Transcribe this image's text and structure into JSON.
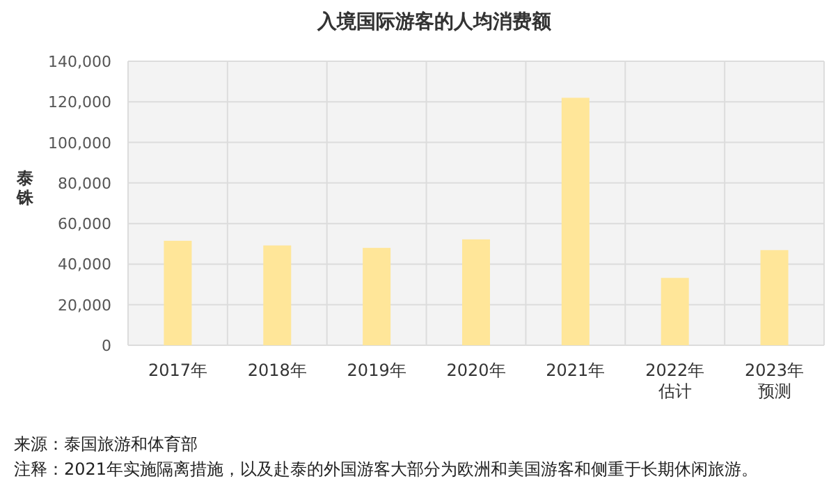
{
  "chart_data": {
    "type": "bar",
    "title": "入境国际游客的人均消费额",
    "ylabel": "泰铢",
    "categories": [
      "2017年",
      "2018年",
      "2019年",
      "2020年",
      "2021年",
      "2022年估计",
      "2023年预测"
    ],
    "values": [
      51500,
      49200,
      48000,
      52200,
      122000,
      33200,
      46900
    ],
    "color": "#ffe699",
    "ylim": [
      0,
      140000
    ],
    "yticks": [
      {
        "value": 0,
        "label": "0"
      },
      {
        "value": 20000,
        "label": "20,000"
      },
      {
        "value": 40000,
        "label": "40,000"
      },
      {
        "value": 60000,
        "label": "60,000"
      },
      {
        "value": 80000,
        "label": "80,000"
      },
      {
        "value": 100000,
        "label": "100,000"
      },
      {
        "value": 120000,
        "label": "120,000"
      },
      {
        "value": 140000,
        "label": "140,000"
      }
    ],
    "grid": true,
    "annotations": [
      "来源：泰国旅游和体育部",
      "注释：2021年实施隔离措施，以及赴泰的外国游客大部分为欧洲和美国游客和侧重于长期休闲旅游。"
    ]
  }
}
